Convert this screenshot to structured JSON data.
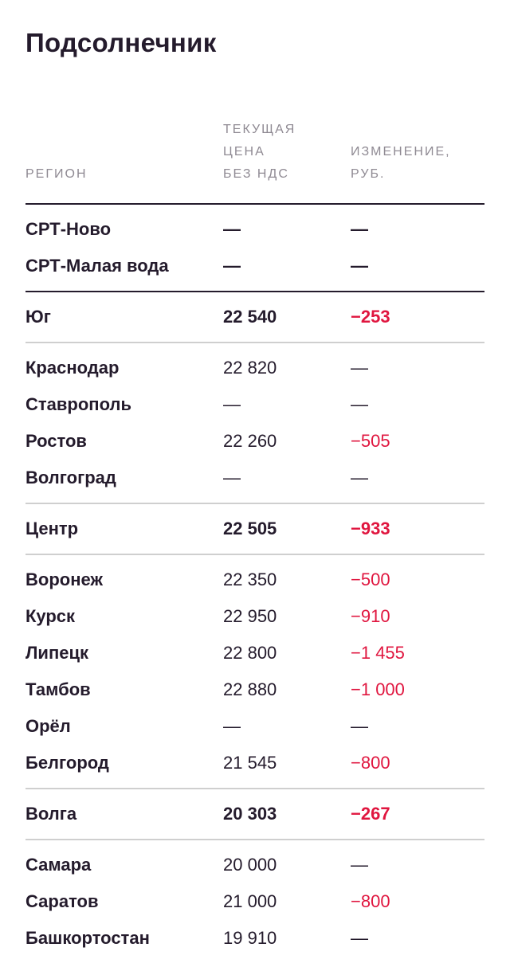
{
  "title": "Подсолнечник",
  "columns": [
    "Регион",
    "Текущая\nцена\nбез НДС",
    "Изменение,\nруб."
  ],
  "colors": {
    "negative": "#e0163f",
    "text": "#241b2c"
  },
  "blocks": [
    {
      "style": "dark",
      "rows": [
        {
          "region": "СРТ-Ново",
          "price": "—",
          "change": "—",
          "bold": true
        },
        {
          "region": "СРТ-Малая вода",
          "price": "—",
          "change": "—",
          "bold": true
        }
      ]
    },
    {
      "style": "light",
      "rows": [
        {
          "region": "Юг",
          "price": "22 540",
          "change": "−253",
          "bold": true
        }
      ]
    },
    {
      "style": "light",
      "rows": [
        {
          "region": "Краснодар",
          "price": "22 820",
          "change": "—"
        },
        {
          "region": "Ставрополь",
          "price": "—",
          "change": "—"
        },
        {
          "region": "Ростов",
          "price": "22 260",
          "change": "−505"
        },
        {
          "region": "Волгоград",
          "price": "—",
          "change": "—"
        }
      ]
    },
    {
      "style": "light",
      "rows": [
        {
          "region": "Центр",
          "price": "22 505",
          "change": "−933",
          "bold": true
        }
      ]
    },
    {
      "style": "light",
      "rows": [
        {
          "region": "Воронеж",
          "price": "22 350",
          "change": "−500"
        },
        {
          "region": "Курск",
          "price": "22 950",
          "change": "−910"
        },
        {
          "region": "Липецк",
          "price": "22 800",
          "change": "−1 455"
        },
        {
          "region": "Тамбов",
          "price": "22 880",
          "change": "−1 000"
        },
        {
          "region": "Орёл",
          "price": "—",
          "change": "—"
        },
        {
          "region": "Белгород",
          "price": "21 545",
          "change": "−800"
        }
      ]
    },
    {
      "style": "light",
      "rows": [
        {
          "region": "Волга",
          "price": "20 303",
          "change": "−267",
          "bold": true
        }
      ]
    },
    {
      "style": "last",
      "rows": [
        {
          "region": "Самара",
          "price": "20 000",
          "change": "—"
        },
        {
          "region": "Саратов",
          "price": "21 000",
          "change": "−800"
        },
        {
          "region": "Башкортостан",
          "price": "19 910",
          "change": "—"
        }
      ]
    }
  ]
}
